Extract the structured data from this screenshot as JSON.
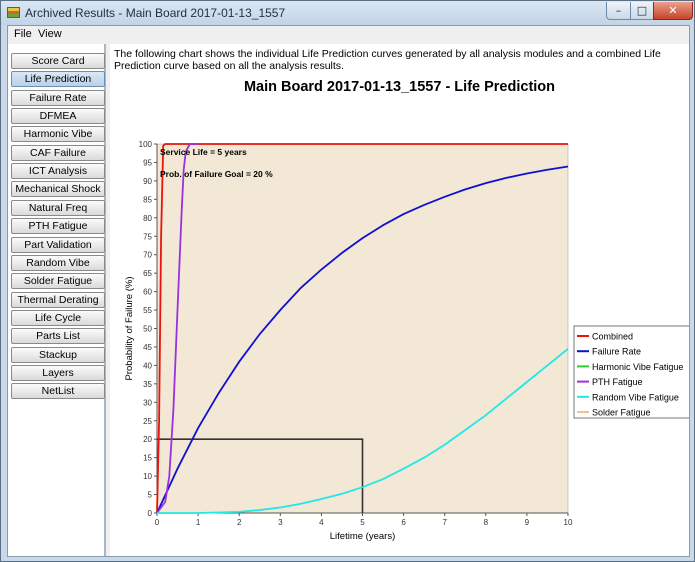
{
  "window": {
    "title": "Archived Results - Main Board 2017-01-13_1557",
    "min_glyph": "–",
    "max_glyph": "□",
    "close_glyph": "✕"
  },
  "menu": {
    "items": [
      "File",
      "View"
    ]
  },
  "sidebar": {
    "active": "Life Prediction",
    "items": [
      "Score Card",
      "Life Prediction",
      "Failure Rate",
      "DFMEA",
      "Harmonic Vibe",
      "CAF Failure",
      "ICT Analysis",
      "Mechanical Shock",
      "Natural Freq",
      "PTH Fatigue",
      "Part Validation",
      "Random Vibe",
      "Solder Fatigue",
      "Thermal Derating",
      "Life Cycle",
      "Parts List",
      "Stackup",
      "Layers",
      "NetList"
    ]
  },
  "description": "The following chart shows the individual Life Prediction curves generated by all analysis modules and a combined Life Prediction curve based on all the analysis results.",
  "chart_data": {
    "type": "line",
    "title": "Main Board 2017-01-13_1557 - Life Prediction",
    "xlabel": "Lifetime (years)",
    "ylabel": "Probability of Failure (%)",
    "xlim": [
      0,
      10
    ],
    "ylim": [
      0,
      100
    ],
    "x_ticks": [
      0,
      1,
      2,
      3,
      4,
      5,
      6,
      7,
      8,
      9,
      10
    ],
    "y_ticks": [
      0,
      5,
      10,
      15,
      20,
      25,
      30,
      35,
      40,
      45,
      50,
      55,
      60,
      65,
      70,
      75,
      80,
      85,
      90,
      95,
      100
    ],
    "grid": false,
    "legend_position": "right",
    "plot_background": "#f2e8d5",
    "annotations": [
      "Service Life = 5 years",
      "Prob. of Failure Goal = 20 %"
    ],
    "reference_box": {
      "x": 5,
      "y": 20,
      "color": "#333333"
    },
    "series": [
      {
        "name": "Combined",
        "color": "#e8150a",
        "x": [
          0,
          0.05,
          0.1,
          0.15,
          0.2,
          10
        ],
        "y": [
          0,
          25,
          75,
          99.5,
          100,
          100
        ]
      },
      {
        "name": "Failure Rate",
        "color": "#1010d0",
        "x": [
          0,
          0.5,
          1,
          1.5,
          2,
          2.5,
          3,
          3.5,
          4,
          4.5,
          5,
          5.5,
          6,
          6.5,
          7,
          7.5,
          8,
          8.5,
          9,
          9.5,
          10
        ],
        "y": [
          0,
          12,
          23,
          32.5,
          41,
          48.5,
          55,
          61,
          66,
          70.5,
          74.5,
          78,
          81,
          83.5,
          85.7,
          87.7,
          89.4,
          90.8,
          92,
          93,
          93.9
        ]
      },
      {
        "name": "Harmonic Vibe Fatigue",
        "color": "#33cc33",
        "x": [],
        "y": []
      },
      {
        "name": "PTH Fatigue",
        "color": "#9b30e0",
        "x": [
          0,
          0.2,
          0.3,
          0.4,
          0.5,
          0.6,
          0.65,
          0.7,
          0.8,
          1
        ],
        "y": [
          0,
          3,
          10,
          28,
          55,
          82,
          93,
          98,
          100,
          100
        ]
      },
      {
        "name": "Random Vibe Fatigue",
        "color": "#1fe8e8",
        "x": [
          0,
          1,
          2,
          2.5,
          3,
          3.5,
          4,
          4.5,
          5,
          5.5,
          6,
          6.5,
          7,
          7.5,
          8,
          8.5,
          9,
          9.5,
          10
        ],
        "y": [
          0,
          0,
          0.3,
          0.8,
          1.5,
          2.5,
          3.8,
          5.2,
          7,
          9.2,
          12,
          15,
          18.5,
          22.5,
          26.5,
          31,
          35.5,
          40,
          44.5
        ]
      },
      {
        "name": "Solder Fatigue",
        "color": "#f0c090",
        "x": [],
        "y": []
      }
    ]
  }
}
